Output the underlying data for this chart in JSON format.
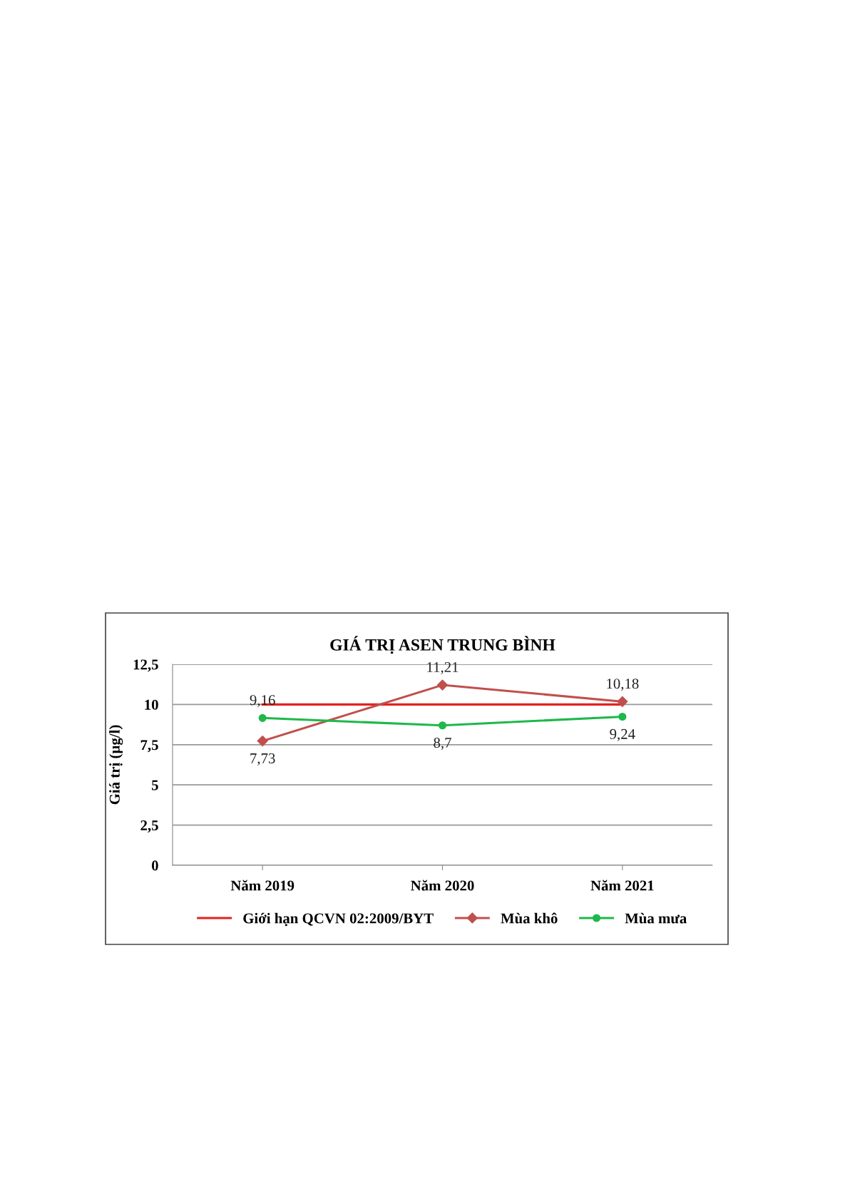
{
  "chart_data": {
    "type": "line",
    "title": "GIÁ TRỊ ASEN TRUNG BÌNH",
    "ylabel": "Giá trị (µg/l)",
    "categories": [
      "Năm 2019",
      "Năm 2020",
      "Năm 2021"
    ],
    "series": [
      {
        "name": "Giới hạn QCVN 02:2009/BYT",
        "color": "#e3231f",
        "values": [
          10,
          10,
          10
        ],
        "marker": "none"
      },
      {
        "name": "Mùa khô",
        "color": "#c0504d",
        "values": [
          7.73,
          11.21,
          10.18
        ],
        "marker": "diamond",
        "value_labels": [
          "7,73",
          "11,21",
          "10,18"
        ]
      },
      {
        "name": "Mùa mưa",
        "color": "#1fb84a",
        "values": [
          9.16,
          8.7,
          9.24
        ],
        "marker": "circle",
        "value_labels": [
          "9,16",
          "8,7",
          "9,24"
        ]
      }
    ],
    "ylim": [
      0,
      12.5
    ],
    "yticks": [
      0,
      {
        "value": 2.5,
        "label": "2,5"
      },
      5,
      {
        "value": 7.5,
        "label": "7,5"
      },
      10,
      {
        "value": 12.5,
        "label": "12,5"
      }
    ],
    "grid": "y",
    "legend": "bottom",
    "line_style": "solid"
  }
}
